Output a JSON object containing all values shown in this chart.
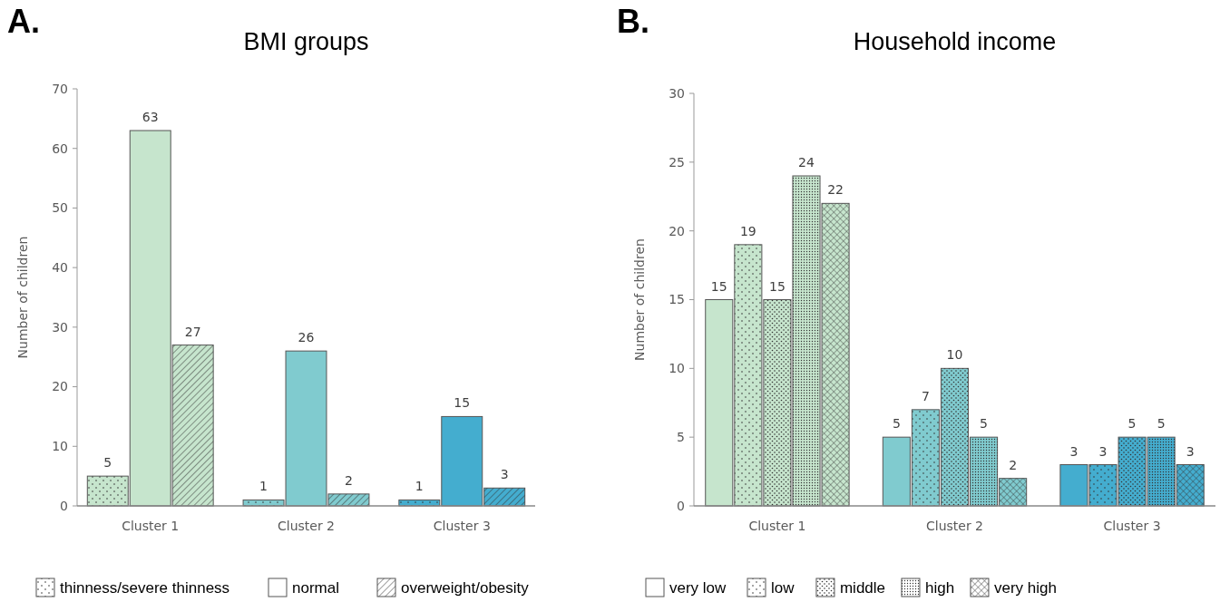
{
  "chart_data": [
    {
      "type": "bar",
      "title": "BMI groups",
      "ylabel": "Number of children",
      "annotations": [
        "A."
      ],
      "categories": [
        "Cluster 1",
        "Cluster 2",
        "Cluster 3"
      ],
      "ylim": [
        0,
        70
      ],
      "yticks": [
        0,
        10,
        20,
        30,
        40,
        50,
        60,
        70
      ],
      "data_labels": true,
      "legend": "bottom",
      "grid": false,
      "series": [
        {
          "name": "thinness/severe thinness",
          "colors": [
            "#c6e5cd",
            "#80cbcf",
            "#44adcf"
          ],
          "values": [
            5,
            1,
            1
          ]
        },
        {
          "name": "normal",
          "colors": [
            "#c6e5cd",
            "#80cbcf",
            "#44adcf"
          ],
          "values": [
            63,
            26,
            15
          ]
        },
        {
          "name": "overweight/obesity",
          "colors": [
            "#c6e5cd",
            "#80cbcf",
            "#44adcf"
          ],
          "values": [
            27,
            2,
            3
          ]
        }
      ]
    },
    {
      "type": "bar",
      "title": "Household income",
      "ylabel": "Number of children",
      "annotations": [
        "B."
      ],
      "categories": [
        "Cluster 1",
        "Cluster 2",
        "Cluster 3"
      ],
      "ylim": [
        0,
        30
      ],
      "yticks": [
        0,
        5,
        10,
        15,
        20,
        25,
        30
      ],
      "data_labels": true,
      "legend": "bottom",
      "grid": false,
      "series": [
        {
          "name": "very low",
          "colors": [
            "#c6e5cd",
            "#80cbcf",
            "#44adcf"
          ],
          "values": [
            15,
            5,
            3
          ]
        },
        {
          "name": "low",
          "colors": [
            "#c6e5cd",
            "#80cbcf",
            "#44adcf"
          ],
          "values": [
            19,
            7,
            3
          ]
        },
        {
          "name": "middle",
          "colors": [
            "#c6e5cd",
            "#80cbcf",
            "#44adcf"
          ],
          "values": [
            15,
            10,
            5
          ]
        },
        {
          "name": "high",
          "colors": [
            "#c6e5cd",
            "#80cbcf",
            "#44adcf"
          ],
          "values": [
            24,
            5,
            5
          ]
        },
        {
          "name": "very high",
          "colors": [
            "#c6e5cd",
            "#80cbcf",
            "#44adcf"
          ],
          "values": [
            22,
            2,
            3
          ]
        }
      ]
    }
  ]
}
